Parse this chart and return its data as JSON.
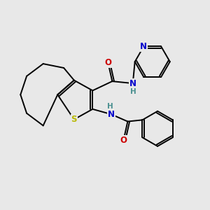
{
  "background_color": "#e8e8e8",
  "atom_colors": {
    "C": "#000000",
    "N": "#0000cc",
    "O": "#cc0000",
    "S": "#b8b800",
    "H": "#4a9090"
  },
  "bond_color": "#000000",
  "bond_width": 1.4,
  "figsize": [
    3.0,
    3.0
  ],
  "dpi": 100
}
